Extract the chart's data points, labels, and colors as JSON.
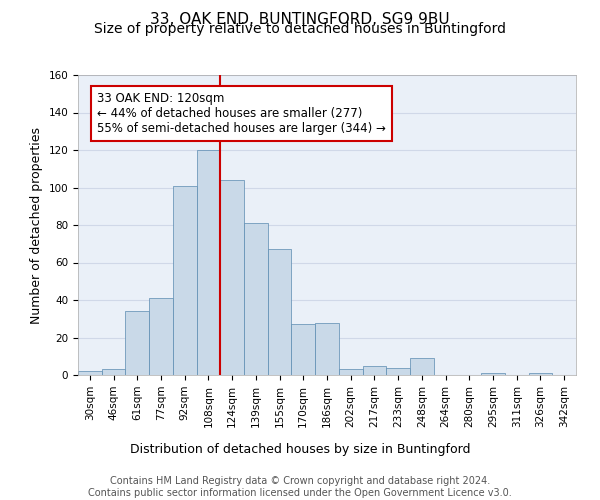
{
  "title": "33, OAK END, BUNTINGFORD, SG9 9BU",
  "subtitle": "Size of property relative to detached houses in Buntingford",
  "xlabel": "Distribution of detached houses by size in Buntingford",
  "ylabel": "Number of detached properties",
  "bar_labels": [
    "30sqm",
    "46sqm",
    "61sqm",
    "77sqm",
    "92sqm",
    "108sqm",
    "124sqm",
    "139sqm",
    "155sqm",
    "170sqm",
    "186sqm",
    "202sqm",
    "217sqm",
    "233sqm",
    "248sqm",
    "264sqm",
    "280sqm",
    "295sqm",
    "311sqm",
    "326sqm",
    "342sqm"
  ],
  "bar_values": [
    2,
    3,
    34,
    41,
    101,
    120,
    104,
    81,
    67,
    27,
    28,
    3,
    5,
    4,
    9,
    0,
    0,
    1,
    0,
    1,
    0
  ],
  "bar_color": "#c9d9e8",
  "bar_edge_color": "#5a8ab0",
  "vline_x": 5.5,
  "vline_color": "#cc0000",
  "annotation_text": "33 OAK END: 120sqm\n← 44% of detached houses are smaller (277)\n55% of semi-detached houses are larger (344) →",
  "annotation_box_color": "#ffffff",
  "annotation_box_edge_color": "#cc0000",
  "ylim": [
    0,
    160
  ],
  "yticks": [
    0,
    20,
    40,
    60,
    80,
    100,
    120,
    140,
    160
  ],
  "grid_color": "#d0d8e8",
  "background_color": "#eaf0f8",
  "footer_text": "Contains HM Land Registry data © Crown copyright and database right 2024.\nContains public sector information licensed under the Open Government Licence v3.0.",
  "title_fontsize": 11,
  "subtitle_fontsize": 10,
  "xlabel_fontsize": 9,
  "ylabel_fontsize": 9,
  "tick_fontsize": 7.5,
  "annotation_fontsize": 8.5,
  "footer_fontsize": 7
}
